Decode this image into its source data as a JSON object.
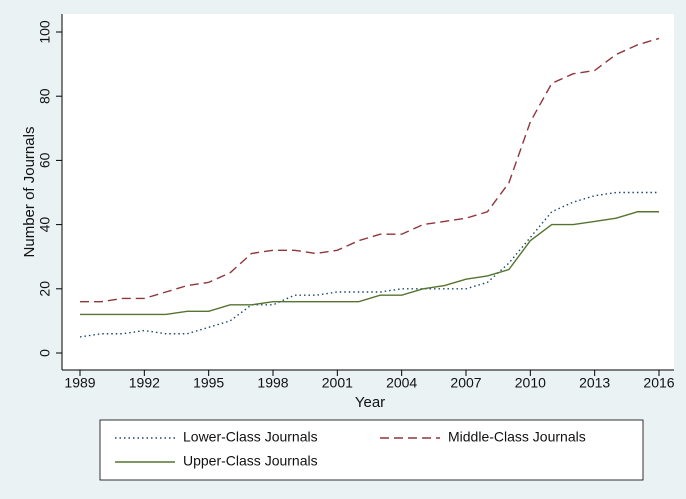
{
  "chart_data": {
    "type": "line",
    "xlabel": "Year",
    "ylabel": "Number of Journals",
    "x": [
      1989,
      1990,
      1991,
      1992,
      1993,
      1994,
      1995,
      1996,
      1997,
      1998,
      1999,
      2000,
      2001,
      2002,
      2003,
      2004,
      2005,
      2006,
      2007,
      2008,
      2009,
      2010,
      2011,
      2012,
      2013,
      2014,
      2015,
      2016
    ],
    "series": [
      {
        "name": "Lower-Class Journals",
        "color": "#1a476f",
        "dash": "dotted",
        "values": [
          5,
          6,
          6,
          7,
          6,
          6,
          8,
          10,
          15,
          15,
          18,
          18,
          19,
          19,
          19,
          20,
          20,
          20,
          20,
          22,
          28,
          36,
          44,
          47,
          49,
          50,
          50,
          50
        ]
      },
      {
        "name": "Middle-Class Journals",
        "color": "#90353b",
        "dash": "dashed",
        "values": [
          16,
          16,
          17,
          17,
          19,
          21,
          22,
          25,
          31,
          32,
          32,
          31,
          32,
          35,
          37,
          37,
          40,
          41,
          42,
          44,
          53,
          72,
          84,
          87,
          88,
          93,
          96,
          98
        ]
      },
      {
        "name": "Upper-Class Journals",
        "color": "#55752f",
        "dash": "solid",
        "values": [
          12,
          12,
          12,
          12,
          12,
          13,
          13,
          15,
          15,
          16,
          16,
          16,
          16,
          16,
          18,
          18,
          20,
          21,
          23,
          24,
          26,
          35,
          40,
          40,
          41,
          42,
          44,
          44
        ]
      }
    ],
    "xlim": [
      1989,
      2016
    ],
    "xticks": [
      1989,
      1992,
      1995,
      1998,
      2001,
      2004,
      2007,
      2010,
      2013,
      2016
    ],
    "ylim": [
      0,
      100
    ],
    "yticks": [
      0,
      20,
      40,
      60,
      80,
      100
    ],
    "grid": false,
    "legend": "bottom"
  }
}
